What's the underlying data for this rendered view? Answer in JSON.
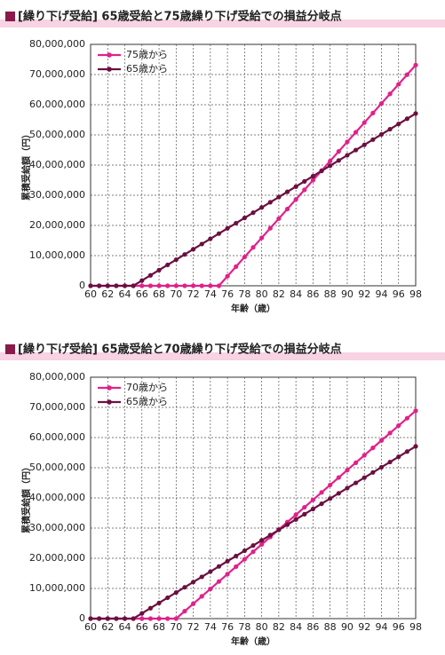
{
  "chart_data": [
    {
      "type": "line",
      "title": "[繰り下げ受給] 65歳受給と75歳繰り下げ受給での損益分岐点",
      "x_label": "年齢（歳）",
      "y_label": "累積受給額（円）",
      "x": [
        60,
        61,
        62,
        63,
        64,
        65,
        66,
        67,
        68,
        69,
        70,
        71,
        72,
        73,
        74,
        75,
        76,
        77,
        78,
        79,
        80,
        81,
        82,
        83,
        84,
        85,
        86,
        87,
        88,
        89,
        90,
        91,
        92,
        93,
        94,
        95,
        96,
        97,
        98
      ],
      "series": [
        {
          "name": "75歳から",
          "color": "#e0218a",
          "values": [
            0,
            0,
            0,
            0,
            0,
            0,
            0,
            0,
            0,
            0,
            0,
            0,
            0,
            0,
            0,
            0,
            3180000,
            6360000,
            9540000,
            12720000,
            15900000,
            19080000,
            22260000,
            25440000,
            28620000,
            31800000,
            34980000,
            38160000,
            41340000,
            44520000,
            47700000,
            50880000,
            54060000,
            57240000,
            60420000,
            63600000,
            66780000,
            69960000,
            73140000
          ]
        },
        {
          "name": "65歳から",
          "color": "#6b1040",
          "values": [
            0,
            0,
            0,
            0,
            0,
            0,
            1730000,
            3460000,
            5190000,
            6920000,
            8650000,
            10380000,
            12110000,
            13840000,
            15570000,
            17300000,
            19030000,
            20760000,
            22490000,
            24220000,
            25950000,
            27680000,
            29410000,
            31140000,
            32870000,
            34600000,
            36330000,
            38060000,
            39790000,
            41520000,
            43250000,
            44980000,
            46710000,
            48440000,
            50170000,
            51900000,
            53630000,
            55360000,
            57090000
          ]
        }
      ],
      "xlim": [
        60,
        98
      ],
      "xticks": [
        60,
        62,
        64,
        66,
        68,
        70,
        72,
        74,
        76,
        78,
        80,
        82,
        84,
        86,
        88,
        90,
        92,
        94,
        96,
        98
      ],
      "ylim": [
        0,
        80000000
      ],
      "yticks": [
        0,
        {
          "value": 10000000,
          "label": "10,000,000"
        },
        {
          "value": 20000000,
          "label": "20,000,000"
        },
        {
          "value": 30000000,
          "label": "30,000,000"
        },
        {
          "value": 40000000,
          "label": "40,000,000"
        },
        {
          "value": 50000000,
          "label": "50,000,000"
        },
        {
          "value": 60000000,
          "label": "60,000,000"
        },
        {
          "value": 70000000,
          "label": "70,000,000"
        },
        {
          "value": 80000000,
          "label": "80,000,000"
        }
      ],
      "grid": true,
      "legend": "upper-left"
    },
    {
      "type": "line",
      "title": "[繰り下げ受給] 65歳受給と70歳繰り下げ受給での損益分岐点",
      "x_label": "年齢（歳）",
      "y_label": "累積受給額（円）",
      "x": [
        60,
        61,
        62,
        63,
        64,
        65,
        66,
        67,
        68,
        69,
        70,
        71,
        72,
        73,
        74,
        75,
        76,
        77,
        78,
        79,
        80,
        81,
        82,
        83,
        84,
        85,
        86,
        87,
        88,
        89,
        90,
        91,
        92,
        93,
        94,
        95,
        96,
        97,
        98
      ],
      "series": [
        {
          "name": "70歳から",
          "color": "#e0218a",
          "values": [
            0,
            0,
            0,
            0,
            0,
            0,
            0,
            0,
            0,
            0,
            0,
            2460000,
            4920000,
            7380000,
            9840000,
            12300000,
            14760000,
            17220000,
            19680000,
            22140000,
            24600000,
            27060000,
            29520000,
            31980000,
            34440000,
            36900000,
            39360000,
            41820000,
            44280000,
            46740000,
            49200000,
            51660000,
            54120000,
            56580000,
            59040000,
            61500000,
            63960000,
            66420000,
            68880000
          ]
        },
        {
          "name": "65歳から",
          "color": "#6b1040",
          "values": [
            0,
            0,
            0,
            0,
            0,
            0,
            1730000,
            3460000,
            5190000,
            6920000,
            8650000,
            10380000,
            12110000,
            13840000,
            15570000,
            17300000,
            19030000,
            20760000,
            22490000,
            24220000,
            25950000,
            27680000,
            29410000,
            31140000,
            32870000,
            34600000,
            36330000,
            38060000,
            39790000,
            41520000,
            43250000,
            44980000,
            46710000,
            48440000,
            50170000,
            51900000,
            53630000,
            55360000,
            57090000
          ]
        }
      ],
      "xlim": [
        60,
        98
      ],
      "xticks": [
        60,
        62,
        64,
        66,
        68,
        70,
        72,
        74,
        76,
        78,
        80,
        82,
        84,
        86,
        88,
        90,
        92,
        94,
        96,
        98
      ],
      "ylim": [
        0,
        80000000
      ],
      "yticks": [
        0,
        {
          "value": 10000000,
          "label": "10,000,000"
        },
        {
          "value": 20000000,
          "label": "20,000,000"
        },
        {
          "value": 30000000,
          "label": "30,000,000"
        },
        {
          "value": 40000000,
          "label": "40,000,000"
        },
        {
          "value": 50000000,
          "label": "50,000,000"
        },
        {
          "value": 60000000,
          "label": "60,000,000"
        },
        {
          "value": 70000000,
          "label": "70,000,000"
        },
        {
          "value": 80000000,
          "label": "80,000,000"
        }
      ],
      "grid": true,
      "legend": "upper-left"
    }
  ]
}
